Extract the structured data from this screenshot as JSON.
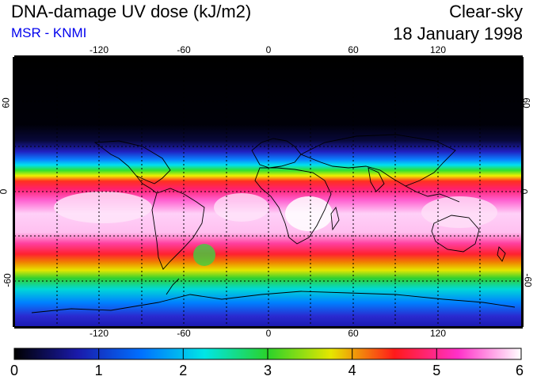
{
  "header": {
    "title": "DNA-damage UV dose (kJ/m2)",
    "source": "MSR - KNMI",
    "condition": "Clear-sky",
    "date": "18 January 1998"
  },
  "map": {
    "lon_ticks_top": [
      "-120",
      "-60",
      "0",
      "60",
      "120"
    ],
    "lon_ticks_bottom": [
      "-120",
      "-60",
      "0",
      "60",
      "120"
    ],
    "lat_ticks_left": [
      "60",
      "0",
      "-60"
    ],
    "lat_ticks_right": [
      "60",
      "0",
      "-60"
    ]
  },
  "colorbar": {
    "labels": [
      "0",
      "1",
      "2",
      "3",
      "4",
      "5",
      "6"
    ],
    "colors": [
      "#000000",
      "#1a1aaa",
      "#0070ff",
      "#00e6e6",
      "#2ad22a",
      "#e6e600",
      "#ff1a1a",
      "#ff30c8",
      "#ffffff"
    ]
  },
  "colors": {
    "source_text": "#0000ee"
  }
}
